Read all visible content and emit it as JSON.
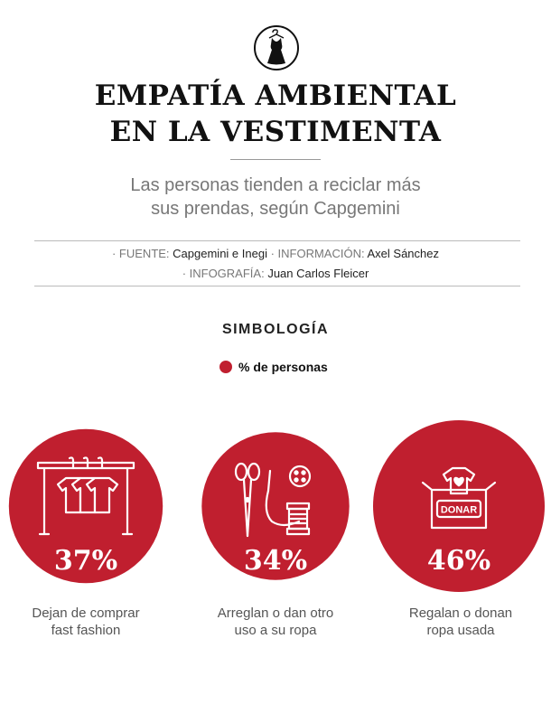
{
  "header": {
    "icon": "dress-icon",
    "title_line1": "EMPATÍA AMBIENTAL",
    "title_line2": "EN LA VESTIMENTA",
    "subtitle_line1": "Las personas tienden a reciclar más",
    "subtitle_line2": "sus prendas, según Capgemini"
  },
  "credits": {
    "source_label": "· FUENTE:",
    "source_value": "Capgemini e Inegi",
    "info_label": "· INFORMACIÓN:",
    "info_value": "Axel Sánchez",
    "graphic_label": "· INFOGRAFÍA:",
    "graphic_value": "Juan Carlos Fleicer"
  },
  "legend": {
    "title": "SIMBOLOGÍA",
    "label": "% de personas",
    "color": "#c01f2f"
  },
  "chart_data": {
    "type": "bubble",
    "unit": "%",
    "categories": [
      {
        "line1": "Dejan de comprar",
        "line2": "fast fashion",
        "value": 37,
        "label": "37%",
        "icon": "clothes-rack-icon"
      },
      {
        "line1": "Arreglan o dan otro",
        "line2": "uso a su ropa",
        "value": 34,
        "label": "34%",
        "icon": "sewing-icon"
      },
      {
        "line1": "Regalan o donan",
        "line2": "ropa usada",
        "value": 46,
        "label": "46%",
        "icon": "donation-box-icon",
        "box_text": "DONAR"
      }
    ]
  }
}
